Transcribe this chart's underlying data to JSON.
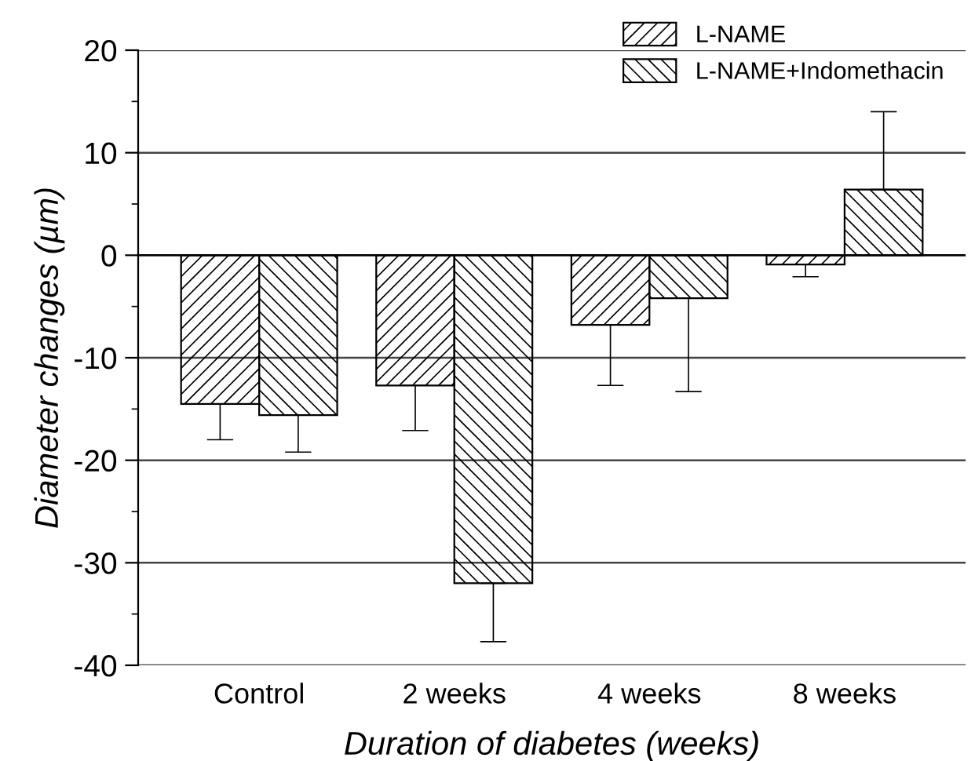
{
  "chart_data": {
    "type": "bar",
    "categories": [
      "Control",
      "2 weeks",
      "4 weeks",
      "8 weeks"
    ],
    "series": [
      {
        "name": "L-NAME",
        "color": "#000000",
        "values": [
          -14.5,
          -12.7,
          -6.8,
          -0.9
        ],
        "errors": [
          [
            -18.0,
            -14.5
          ],
          [
            -17.1,
            -12.7
          ],
          [
            -12.7,
            -6.8
          ],
          [
            -2.1,
            -0.9
          ]
        ]
      },
      {
        "name": "L-NAME+Indomethacin",
        "color": "#000000",
        "values": [
          -15.6,
          -32.0,
          -4.2,
          6.4
        ],
        "errors": [
          [
            -19.2,
            -15.6
          ],
          [
            -37.7,
            -32.0
          ],
          [
            -13.3,
            -4.2
          ],
          [
            6.4,
            14.0
          ]
        ]
      }
    ],
    "xlabel": "Duration of diabetes (weeks)",
    "ylabel": "Diameter changes (µm)",
    "ylim": [
      -40,
      20
    ],
    "yticks": [
      -40,
      -30,
      -20,
      -10,
      0,
      10,
      20
    ],
    "grid": "y",
    "legend": "top right",
    "ref_lines": [
      {
        "axis": "y",
        "value": 0,
        "color": "#000000"
      }
    ]
  }
}
